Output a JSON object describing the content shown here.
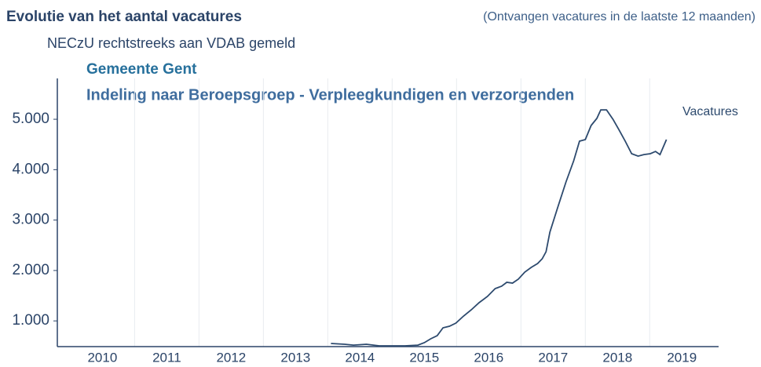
{
  "chart_data": {
    "type": "line",
    "title": "Evolutie van het aantal vacatures",
    "note": "(Ontvangen vacatures in de laatste 12 maanden)",
    "subtitle": "NECzU rechtstreeks aan VDAB gemeld",
    "region": "Gemeente Gent",
    "breakdown": "Indeling naar Beroepsgroep - Verpleegkundigen en verzorgenden",
    "x": [
      2014.05,
      2014.26,
      2014.4,
      2014.6,
      2014.8,
      2015.0,
      2015.2,
      2015.4,
      2015.5,
      2015.6,
      2015.7,
      2015.79,
      2015.89,
      2015.99,
      2016.11,
      2016.23,
      2016.35,
      2016.48,
      2016.6,
      2016.7,
      2016.78,
      2016.87,
      2016.96,
      2017.06,
      2017.16,
      2017.26,
      2017.33,
      2017.39,
      2017.45,
      2017.57,
      2017.7,
      2017.82,
      2017.91,
      2018.0,
      2018.09,
      2018.18,
      2018.24,
      2018.33,
      2018.43,
      2018.52,
      2018.62,
      2018.72,
      2018.82,
      2018.91,
      2019.01,
      2019.09,
      2019.16,
      2019.26
    ],
    "series": [
      {
        "name": "Vacatures",
        "color": "#2d4a6e",
        "values": [
          552,
          537,
          520,
          537,
          505,
          505,
          505,
          520,
          568,
          646,
          708,
          864,
          895,
          957,
          1097,
          1221,
          1361,
          1486,
          1641,
          1688,
          1766,
          1750,
          1828,
          1968,
          2061,
          2139,
          2232,
          2372,
          2761,
          3243,
          3756,
          4176,
          4565,
          4596,
          4876,
          5016,
          5187,
          5187,
          5000,
          4798,
          4565,
          4316,
          4269,
          4300,
          4316,
          4362,
          4300,
          4596
        ]
      }
    ],
    "xlim": [
      2009.8,
      2020.07
    ],
    "xticks": [
      {
        "value": 2010.5,
        "label": "2010"
      },
      {
        "value": 2011.5,
        "label": "2011"
      },
      {
        "value": 2012.5,
        "label": "2012"
      },
      {
        "value": 2013.5,
        "label": "2013"
      },
      {
        "value": 2014.5,
        "label": "2014"
      },
      {
        "value": 2015.5,
        "label": "2015"
      },
      {
        "value": 2016.5,
        "label": "2016"
      },
      {
        "value": 2017.5,
        "label": "2017"
      },
      {
        "value": 2018.5,
        "label": "2018"
      },
      {
        "value": 2019.5,
        "label": "2019"
      }
    ],
    "ylim": [
      490,
      5810
    ],
    "yticks": [
      {
        "value": 1000,
        "label": "1.000"
      },
      {
        "value": 2000,
        "label": "2.000"
      },
      {
        "value": 3000,
        "label": "3.000"
      },
      {
        "value": 4000,
        "label": "4.000"
      },
      {
        "value": 5000,
        "label": "5.000"
      }
    ],
    "grid": true
  }
}
